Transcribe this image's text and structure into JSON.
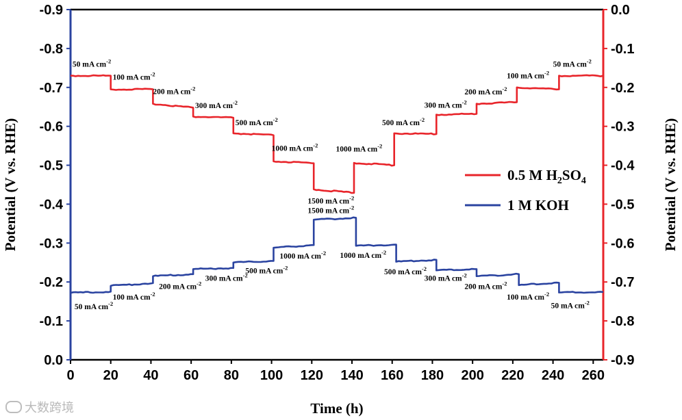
{
  "chart_data": {
    "type": "line",
    "xlabel": "Time (h)",
    "ylabel_left": "Potential (V vs. RHE)",
    "ylabel_right": "Potential (V vs. RHE)",
    "xlim": [
      0,
      265
    ],
    "ylim_left": [
      0.0,
      -0.9
    ],
    "ylim_right": [
      -0.9,
      0.0
    ],
    "x_ticks": [
      "0",
      "20",
      "40",
      "60",
      "80",
      "100",
      "120",
      "140",
      "160",
      "180",
      "200",
      "220",
      "240",
      "260"
    ],
    "y_ticks_left": [
      "-0.9",
      "-0.8",
      "-0.7",
      "-0.6",
      "-0.5",
      "-0.4",
      "-0.3",
      "-0.2",
      "-0.1",
      "0.0"
    ],
    "y_ticks_right": [
      "0.0",
      "-0.1",
      "-0.2",
      "-0.3",
      "-0.4",
      "-0.5",
      "-0.6",
      "-0.7",
      "-0.8",
      "-0.9"
    ],
    "colors": {
      "acid": "#e8242a",
      "alkaline": "#2a43a0"
    },
    "series": [
      {
        "name": "0.5 M H2SO4",
        "axis": "right",
        "color": "#e8242a",
        "steps": [
          {
            "t0": 0,
            "t1": 20,
            "v0": -0.17,
            "v1": -0.17
          },
          {
            "t0": 20,
            "t1": 41,
            "v0": -0.205,
            "v1": -0.205
          },
          {
            "t0": 41,
            "t1": 61,
            "v0": -0.242,
            "v1": -0.252
          },
          {
            "t0": 61,
            "t1": 81,
            "v0": -0.275,
            "v1": -0.278
          },
          {
            "t0": 81,
            "t1": 101,
            "v0": -0.318,
            "v1": -0.323
          },
          {
            "t0": 101,
            "t1": 121,
            "v0": -0.39,
            "v1": -0.395
          },
          {
            "t0": 121,
            "t1": 141,
            "v0": -0.462,
            "v1": -0.471
          },
          {
            "t0": 141,
            "t1": 161,
            "v0": -0.394,
            "v1": -0.4
          },
          {
            "t0": 161,
            "t1": 182,
            "v0": -0.318,
            "v1": -0.32
          },
          {
            "t0": 182,
            "t1": 202,
            "v0": -0.27,
            "v1": -0.268
          },
          {
            "t0": 202,
            "t1": 222,
            "v0": -0.242,
            "v1": -0.238
          },
          {
            "t0": 222,
            "t1": 243,
            "v0": -0.2,
            "v1": -0.205
          },
          {
            "t0": 243,
            "t1": 265,
            "v0": -0.17,
            "v1": -0.17
          }
        ]
      },
      {
        "name": "1 M KOH",
        "axis": "left",
        "color": "#2a43a0",
        "steps": [
          {
            "t0": 0,
            "t1": 20,
            "v0": -0.172,
            "v1": -0.175
          },
          {
            "t0": 20,
            "t1": 41,
            "v0": -0.19,
            "v1": -0.197
          },
          {
            "t0": 41,
            "t1": 61,
            "v0": -0.215,
            "v1": -0.22
          },
          {
            "t0": 61,
            "t1": 81,
            "v0": -0.233,
            "v1": -0.236
          },
          {
            "t0": 81,
            "t1": 101,
            "v0": -0.25,
            "v1": -0.254
          },
          {
            "t0": 101,
            "t1": 121,
            "v0": -0.288,
            "v1": -0.295
          },
          {
            "t0": 121,
            "t1": 142,
            "v0": -0.36,
            "v1": -0.365
          },
          {
            "t0": 142,
            "t1": 162,
            "v0": -0.293,
            "v1": -0.296
          },
          {
            "t0": 162,
            "t1": 182,
            "v0": -0.252,
            "v1": -0.257
          },
          {
            "t0": 182,
            "t1": 202,
            "v0": -0.23,
            "v1": -0.233
          },
          {
            "t0": 202,
            "t1": 223,
            "v0": -0.215,
            "v1": -0.22
          },
          {
            "t0": 223,
            "t1": 243,
            "v0": -0.192,
            "v1": -0.198
          },
          {
            "t0": 243,
            "t1": 265,
            "v0": -0.173,
            "v1": -0.174
          }
        ]
      }
    ],
    "annotations": [
      {
        "text": "50 mA cm",
        "sup": "-2",
        "series": "0.5 M H2SO4",
        "t": 1,
        "v": -0.147
      },
      {
        "text": "100 mA cm",
        "sup": "-2",
        "series": "0.5 M H2SO4",
        "t": 21,
        "v": -0.18
      },
      {
        "text": "200 mA cm",
        "sup": "-2",
        "series": "0.5 M H2SO4",
        "t": 41,
        "v": -0.217
      },
      {
        "text": "300 mA cm",
        "sup": "-2",
        "series": "0.5 M H2SO4",
        "t": 62,
        "v": -0.253
      },
      {
        "text": "500 mA cm",
        "sup": "-2",
        "series": "0.5 M H2SO4",
        "t": 82,
        "v": -0.297
      },
      {
        "text": "1000 mA cm",
        "sup": "-2",
        "series": "0.5 M H2SO4",
        "t": 100,
        "v": -0.363
      },
      {
        "text": "1500 mA cm",
        "sup": "-2",
        "series": "0.5 M H2SO4",
        "t": 118,
        "v": -0.498
      },
      {
        "text": "1000 mA cm",
        "sup": "-2",
        "series": "0.5 M H2SO4",
        "t": 132,
        "v": -0.365
      },
      {
        "text": "500 mA cm",
        "sup": "-2",
        "series": "0.5 M H2SO4",
        "t": 155,
        "v": -0.297
      },
      {
        "text": "300 mA cm",
        "sup": "-2",
        "series": "0.5 M H2SO4",
        "t": 176,
        "v": -0.252
      },
      {
        "text": "200 mA cm",
        "sup": "-2",
        "series": "0.5 M H2SO4",
        "t": 196,
        "v": -0.218
      },
      {
        "text": "100 mA cm",
        "sup": "-2",
        "series": "0.5 M H2SO4",
        "t": 217,
        "v": -0.177
      },
      {
        "text": "50 mA cm",
        "sup": "-2",
        "series": "0.5 M H2SO4",
        "t": 240,
        "v": -0.147
      },
      {
        "text": "1500 mA cm",
        "sup": "-2",
        "series": "1 M KOH",
        "t": 118,
        "v": -0.377
      },
      {
        "text": "1000 mA cm",
        "sup": "-2",
        "series": "1 M KOH",
        "t": 104,
        "v": -0.26
      },
      {
        "text": "1000 mA cm",
        "sup": "-2",
        "series": "1 M KOH",
        "t": 134,
        "v": -0.262
      },
      {
        "text": "500 mA cm",
        "sup": "-2",
        "series": "1 M KOH",
        "t": 87,
        "v": -0.222
      },
      {
        "text": "500 mA cm",
        "sup": "-2",
        "series": "1 M KOH",
        "t": 156,
        "v": -0.22
      },
      {
        "text": "300 mA cm",
        "sup": "-2",
        "series": "1 M KOH",
        "t": 67,
        "v": -0.203
      },
      {
        "text": "300 mA cm",
        "sup": "-2",
        "series": "1 M KOH",
        "t": 176,
        "v": -0.203
      },
      {
        "text": "200 mA cm",
        "sup": "-2",
        "series": "1 M KOH",
        "t": 44,
        "v": -0.182
      },
      {
        "text": "200 mA cm",
        "sup": "-2",
        "series": "1 M KOH",
        "t": 196,
        "v": -0.182
      },
      {
        "text": "100 mA cm",
        "sup": "-2",
        "series": "1 M KOH",
        "t": 21,
        "v": -0.155
      },
      {
        "text": "100 mA cm",
        "sup": "-2",
        "series": "1 M KOH",
        "t": 217,
        "v": -0.155
      },
      {
        "text": "50 mA cm",
        "sup": "-2",
        "series": "1 M KOH",
        "t": 2,
        "v": -0.13
      },
      {
        "text": "50 mA cm",
        "sup": "-2",
        "series": "1 M KOH",
        "t": 239,
        "v": -0.133
      }
    ],
    "legend": {
      "position": "right-center",
      "entries": [
        {
          "series": "0.5 M H2SO4",
          "label_main": "0.5 M H",
          "sub1": "2",
          "mid": "SO",
          "sub2": "4"
        },
        {
          "series": "1 M KOH",
          "label_main": "1 M KOH"
        }
      ]
    }
  },
  "watermark": "大数跨境"
}
